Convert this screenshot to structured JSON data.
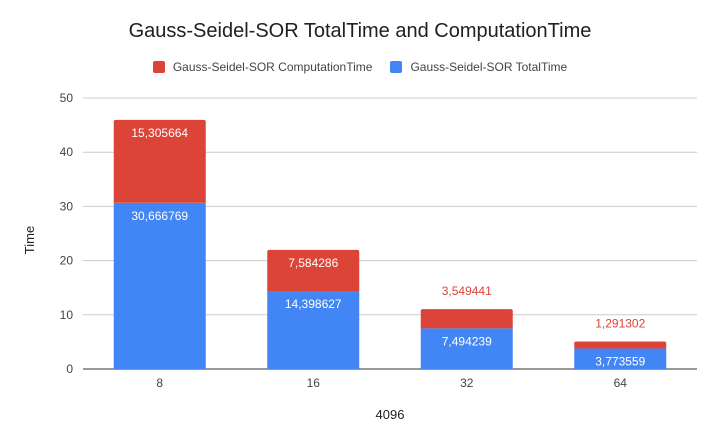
{
  "chart_data": {
    "type": "bar",
    "stacked": true,
    "title": "Gauss-Seidel-SOR TotalTime and ComputationTime",
    "xlabel": "4096",
    "ylabel": "Time",
    "ylim": [
      0,
      50
    ],
    "yticks": [
      "0",
      "10",
      "20",
      "30",
      "40",
      "50"
    ],
    "categories": [
      "8",
      "16",
      "32",
      "64"
    ],
    "grid": true,
    "legend_position": "top",
    "series": [
      {
        "name": "Gauss-Seidel-SOR TotalTime",
        "color": "#4285F4",
        "values": [
          30.666769,
          14.398627,
          7.494239,
          3.773559
        ],
        "labels": [
          "30,666769",
          "14,398627",
          "7,494239",
          "3,773559"
        ]
      },
      {
        "name": "Gauss-Seidel-SOR ComputationTime",
        "color": "#DB4437",
        "values": [
          15.305664,
          7.584286,
          3.549441,
          1.291302
        ],
        "labels": [
          "15,305664",
          "7,584286",
          "3,549441",
          "1,291302"
        ]
      }
    ],
    "legend_order": [
      1,
      0
    ]
  }
}
